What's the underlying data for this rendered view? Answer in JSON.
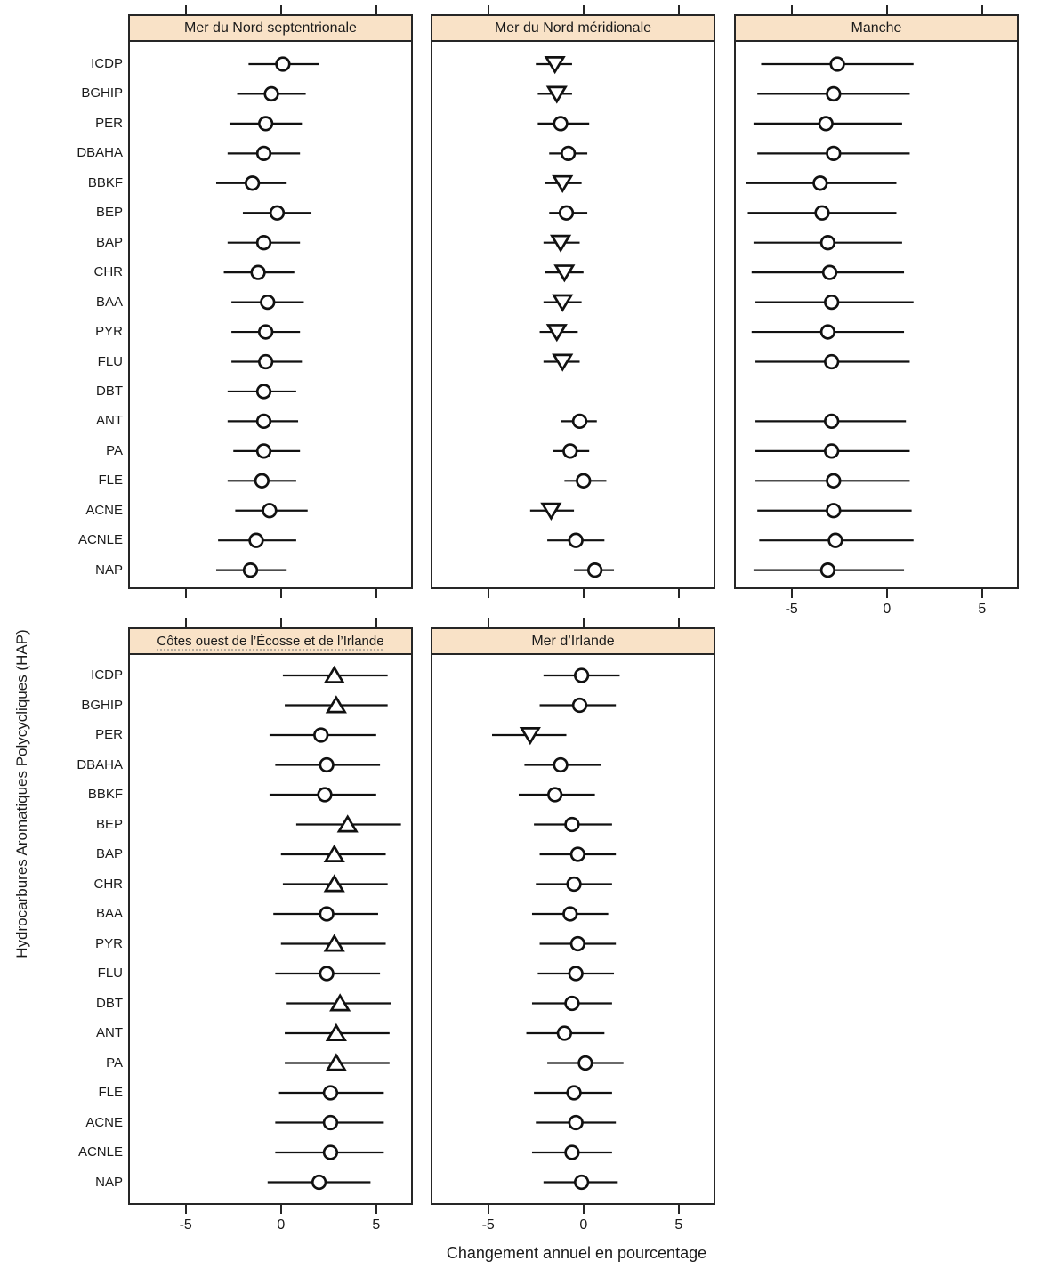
{
  "chart_data": {
    "type": "scatter",
    "subtype": "trellis-dotplot-with-error-bars",
    "xlabel": "Changement annuel en pourcentage",
    "ylabel": "Hydrocarbures Aromatiques Polycycliques (HAP)",
    "categories": [
      "ICDP",
      "BGHIP",
      "PER",
      "DBAHA",
      "BBKF",
      "BEP",
      "BAP",
      "CHR",
      "BAA",
      "PYR",
      "FLU",
      "DBT",
      "ANT",
      "PA",
      "FLE",
      "ACNE",
      "ACNLE",
      "NAP"
    ],
    "x_ticks": [
      -5,
      0,
      5
    ],
    "x_tick_labels": [
      "-5",
      "0",
      "5"
    ],
    "xlim": [
      -7.93,
      6.83
    ],
    "grid": false,
    "colors": {
      "header_bg": "#f9e2c7",
      "panel_border": "#262626",
      "stroke": "#111111",
      "symbol_fill": "#ffffff"
    },
    "panels": [
      {
        "title": "Mer du Nord septentrionale",
        "points": [
          {
            "label": "ICDP",
            "symbol": "circle",
            "value": 0.1,
            "ci": [
              -1.7,
              2.0
            ]
          },
          {
            "label": "BGHIP",
            "symbol": "circle",
            "value": -0.5,
            "ci": [
              -2.3,
              1.3
            ]
          },
          {
            "label": "PER",
            "symbol": "circle",
            "value": -0.8,
            "ci": [
              -2.7,
              1.1
            ]
          },
          {
            "label": "DBAHA",
            "symbol": "circle",
            "value": -0.9,
            "ci": [
              -2.8,
              1.0
            ]
          },
          {
            "label": "BBKF",
            "symbol": "circle",
            "value": -1.5,
            "ci": [
              -3.4,
              0.3
            ]
          },
          {
            "label": "BEP",
            "symbol": "circle",
            "value": -0.2,
            "ci": [
              -2.0,
              1.6
            ]
          },
          {
            "label": "BAP",
            "symbol": "circle",
            "value": -0.9,
            "ci": [
              -2.8,
              1.0
            ]
          },
          {
            "label": "CHR",
            "symbol": "circle",
            "value": -1.2,
            "ci": [
              -3.0,
              0.7
            ]
          },
          {
            "label": "BAA",
            "symbol": "circle",
            "value": -0.7,
            "ci": [
              -2.6,
              1.2
            ]
          },
          {
            "label": "PYR",
            "symbol": "circle",
            "value": -0.8,
            "ci": [
              -2.6,
              1.0
            ]
          },
          {
            "label": "FLU",
            "symbol": "circle",
            "value": -0.8,
            "ci": [
              -2.6,
              1.1
            ]
          },
          {
            "label": "DBT",
            "symbol": "circle",
            "value": -0.9,
            "ci": [
              -2.8,
              0.8
            ]
          },
          {
            "label": "ANT",
            "symbol": "circle",
            "value": -0.9,
            "ci": [
              -2.8,
              0.9
            ]
          },
          {
            "label": "PA",
            "symbol": "circle",
            "value": -0.9,
            "ci": [
              -2.5,
              1.0
            ]
          },
          {
            "label": "FLE",
            "symbol": "circle",
            "value": -1.0,
            "ci": [
              -2.8,
              0.8
            ]
          },
          {
            "label": "ACNE",
            "symbol": "circle",
            "value": -0.6,
            "ci": [
              -2.4,
              1.4
            ]
          },
          {
            "label": "ACNLE",
            "symbol": "circle",
            "value": -1.3,
            "ci": [
              -3.3,
              0.8
            ]
          },
          {
            "label": "NAP",
            "symbol": "circle",
            "value": -1.6,
            "ci": [
              -3.4,
              0.3
            ]
          }
        ]
      },
      {
        "title": "Mer du Nord méridionale",
        "points": [
          {
            "label": "ICDP",
            "symbol": "triangle-down",
            "value": -1.5,
            "ci": [
              -2.5,
              -0.6
            ]
          },
          {
            "label": "BGHIP",
            "symbol": "triangle-down",
            "value": -1.4,
            "ci": [
              -2.4,
              -0.6
            ]
          },
          {
            "label": "PER",
            "symbol": "circle",
            "value": -1.2,
            "ci": [
              -2.4,
              0.3
            ]
          },
          {
            "label": "DBAHA",
            "symbol": "circle",
            "value": -0.8,
            "ci": [
              -1.8,
              0.2
            ]
          },
          {
            "label": "BBKF",
            "symbol": "triangle-down",
            "value": -1.1,
            "ci": [
              -2.0,
              -0.1
            ]
          },
          {
            "label": "BEP",
            "symbol": "circle",
            "value": -0.9,
            "ci": [
              -1.8,
              0.2
            ]
          },
          {
            "label": "BAP",
            "symbol": "triangle-down",
            "value": -1.2,
            "ci": [
              -2.1,
              -0.2
            ]
          },
          {
            "label": "CHR",
            "symbol": "triangle-down",
            "value": -1.0,
            "ci": [
              -2.0,
              0.0
            ]
          },
          {
            "label": "BAA",
            "symbol": "triangle-down",
            "value": -1.1,
            "ci": [
              -2.1,
              -0.1
            ]
          },
          {
            "label": "PYR",
            "symbol": "triangle-down",
            "value": -1.4,
            "ci": [
              -2.3,
              -0.3
            ]
          },
          {
            "label": "FLU",
            "symbol": "triangle-down",
            "value": -1.1,
            "ci": [
              -2.1,
              -0.2
            ]
          },
          {
            "label": "DBT",
            "symbol": "none",
            "value": null,
            "ci": null
          },
          {
            "label": "ANT",
            "symbol": "circle",
            "value": -0.2,
            "ci": [
              -1.2,
              0.7
            ]
          },
          {
            "label": "PA",
            "symbol": "circle",
            "value": -0.7,
            "ci": [
              -1.6,
              0.3
            ]
          },
          {
            "label": "FLE",
            "symbol": "circle",
            "value": 0.0,
            "ci": [
              -1.0,
              1.2
            ]
          },
          {
            "label": "ACNE",
            "symbol": "triangle-down",
            "value": -1.7,
            "ci": [
              -2.8,
              -0.5
            ]
          },
          {
            "label": "ACNLE",
            "symbol": "circle",
            "value": -0.4,
            "ci": [
              -1.9,
              1.1
            ]
          },
          {
            "label": "NAP",
            "symbol": "circle",
            "value": 0.6,
            "ci": [
              -0.5,
              1.6
            ]
          }
        ]
      },
      {
        "title": "Manche",
        "points": [
          {
            "label": "ICDP",
            "symbol": "circle",
            "value": -2.6,
            "ci": [
              -6.6,
              1.4
            ]
          },
          {
            "label": "BGHIP",
            "symbol": "circle",
            "value": -2.8,
            "ci": [
              -6.8,
              1.2
            ]
          },
          {
            "label": "PER",
            "symbol": "circle",
            "value": -3.2,
            "ci": [
              -7.0,
              0.8
            ]
          },
          {
            "label": "DBAHA",
            "symbol": "circle",
            "value": -2.8,
            "ci": [
              -6.8,
              1.2
            ]
          },
          {
            "label": "BBKF",
            "symbol": "circle",
            "value": -3.5,
            "ci": [
              -7.4,
              0.5
            ]
          },
          {
            "label": "BEP",
            "symbol": "circle",
            "value": -3.4,
            "ci": [
              -7.3,
              0.5
            ]
          },
          {
            "label": "BAP",
            "symbol": "circle",
            "value": -3.1,
            "ci": [
              -7.0,
              0.8
            ]
          },
          {
            "label": "CHR",
            "symbol": "circle",
            "value": -3.0,
            "ci": [
              -7.1,
              0.9
            ]
          },
          {
            "label": "BAA",
            "symbol": "circle",
            "value": -2.9,
            "ci": [
              -6.9,
              1.4
            ]
          },
          {
            "label": "PYR",
            "symbol": "circle",
            "value": -3.1,
            "ci": [
              -7.1,
              0.9
            ]
          },
          {
            "label": "FLU",
            "symbol": "circle",
            "value": -2.9,
            "ci": [
              -6.9,
              1.2
            ]
          },
          {
            "label": "DBT",
            "symbol": "none",
            "value": null,
            "ci": null
          },
          {
            "label": "ANT",
            "symbol": "circle",
            "value": -2.9,
            "ci": [
              -6.9,
              1.0
            ]
          },
          {
            "label": "PA",
            "symbol": "circle",
            "value": -2.9,
            "ci": [
              -6.9,
              1.2
            ]
          },
          {
            "label": "FLE",
            "symbol": "circle",
            "value": -2.8,
            "ci": [
              -6.9,
              1.2
            ]
          },
          {
            "label": "ACNE",
            "symbol": "circle",
            "value": -2.8,
            "ci": [
              -6.8,
              1.3
            ]
          },
          {
            "label": "ACNLE",
            "symbol": "circle",
            "value": -2.7,
            "ci": [
              -6.7,
              1.4
            ]
          },
          {
            "label": "NAP",
            "symbol": "circle",
            "value": -3.1,
            "ci": [
              -7.0,
              0.9
            ]
          }
        ]
      },
      {
        "title": "Côtes ouest de l’Écosse et de l’Irlande",
        "points": [
          {
            "label": "ICDP",
            "symbol": "triangle-up",
            "value": 2.8,
            "ci": [
              0.1,
              5.6
            ]
          },
          {
            "label": "BGHIP",
            "symbol": "triangle-up",
            "value": 2.9,
            "ci": [
              0.2,
              5.6
            ]
          },
          {
            "label": "PER",
            "symbol": "circle",
            "value": 2.1,
            "ci": [
              -0.6,
              5.0
            ]
          },
          {
            "label": "DBAHA",
            "symbol": "circle",
            "value": 2.4,
            "ci": [
              -0.3,
              5.2
            ]
          },
          {
            "label": "BBKF",
            "symbol": "circle",
            "value": 2.3,
            "ci": [
              -0.6,
              5.0
            ]
          },
          {
            "label": "BEP",
            "symbol": "triangle-up",
            "value": 3.5,
            "ci": [
              0.8,
              6.3
            ]
          },
          {
            "label": "BAP",
            "symbol": "triangle-up",
            "value": 2.8,
            "ci": [
              0.0,
              5.5
            ]
          },
          {
            "label": "CHR",
            "symbol": "triangle-up",
            "value": 2.8,
            "ci": [
              0.1,
              5.6
            ]
          },
          {
            "label": "BAA",
            "symbol": "circle",
            "value": 2.4,
            "ci": [
              -0.4,
              5.1
            ]
          },
          {
            "label": "PYR",
            "symbol": "triangle-up",
            "value": 2.8,
            "ci": [
              0.0,
              5.5
            ]
          },
          {
            "label": "FLU",
            "symbol": "circle",
            "value": 2.4,
            "ci": [
              -0.3,
              5.2
            ]
          },
          {
            "label": "DBT",
            "symbol": "triangle-up",
            "value": 3.1,
            "ci": [
              0.3,
              5.8
            ]
          },
          {
            "label": "ANT",
            "symbol": "triangle-up",
            "value": 2.9,
            "ci": [
              0.2,
              5.7
            ]
          },
          {
            "label": "PA",
            "symbol": "triangle-up",
            "value": 2.9,
            "ci": [
              0.2,
              5.7
            ]
          },
          {
            "label": "FLE",
            "symbol": "circle",
            "value": 2.6,
            "ci": [
              -0.1,
              5.4
            ]
          },
          {
            "label": "ACNE",
            "symbol": "circle",
            "value": 2.6,
            "ci": [
              -0.3,
              5.4
            ]
          },
          {
            "label": "ACNLE",
            "symbol": "circle",
            "value": 2.6,
            "ci": [
              -0.3,
              5.4
            ]
          },
          {
            "label": "NAP",
            "symbol": "circle",
            "value": 2.0,
            "ci": [
              -0.7,
              4.7
            ]
          }
        ]
      },
      {
        "title": "Mer d’Irlande",
        "points": [
          {
            "label": "ICDP",
            "symbol": "circle",
            "value": -0.1,
            "ci": [
              -2.1,
              1.9
            ]
          },
          {
            "label": "BGHIP",
            "symbol": "circle",
            "value": -0.2,
            "ci": [
              -2.3,
              1.7
            ]
          },
          {
            "label": "PER",
            "symbol": "triangle-down",
            "value": -2.8,
            "ci": [
              -4.8,
              -0.9
            ]
          },
          {
            "label": "DBAHA",
            "symbol": "circle",
            "value": -1.2,
            "ci": [
              -3.1,
              0.9
            ]
          },
          {
            "label": "BBKF",
            "symbol": "circle",
            "value": -1.5,
            "ci": [
              -3.4,
              0.6
            ]
          },
          {
            "label": "BEP",
            "symbol": "circle",
            "value": -0.6,
            "ci": [
              -2.6,
              1.5
            ]
          },
          {
            "label": "BAP",
            "symbol": "circle",
            "value": -0.3,
            "ci": [
              -2.3,
              1.7
            ]
          },
          {
            "label": "CHR",
            "symbol": "circle",
            "value": -0.5,
            "ci": [
              -2.5,
              1.5
            ]
          },
          {
            "label": "BAA",
            "symbol": "circle",
            "value": -0.7,
            "ci": [
              -2.7,
              1.3
            ]
          },
          {
            "label": "PYR",
            "symbol": "circle",
            "value": -0.3,
            "ci": [
              -2.3,
              1.7
            ]
          },
          {
            "label": "FLU",
            "symbol": "circle",
            "value": -0.4,
            "ci": [
              -2.4,
              1.6
            ]
          },
          {
            "label": "DBT",
            "symbol": "circle",
            "value": -0.6,
            "ci": [
              -2.7,
              1.5
            ]
          },
          {
            "label": "ANT",
            "symbol": "circle",
            "value": -1.0,
            "ci": [
              -3.0,
              1.1
            ]
          },
          {
            "label": "PA",
            "symbol": "circle",
            "value": 0.1,
            "ci": [
              -1.9,
              2.1
            ]
          },
          {
            "label": "FLE",
            "symbol": "circle",
            "value": -0.5,
            "ci": [
              -2.6,
              1.5
            ]
          },
          {
            "label": "ACNE",
            "symbol": "circle",
            "value": -0.4,
            "ci": [
              -2.5,
              1.7
            ]
          },
          {
            "label": "ACNLE",
            "symbol": "circle",
            "value": -0.6,
            "ci": [
              -2.7,
              1.5
            ]
          },
          {
            "label": "NAP",
            "symbol": "circle",
            "value": -0.1,
            "ci": [
              -2.1,
              1.8
            ]
          }
        ]
      }
    ]
  }
}
